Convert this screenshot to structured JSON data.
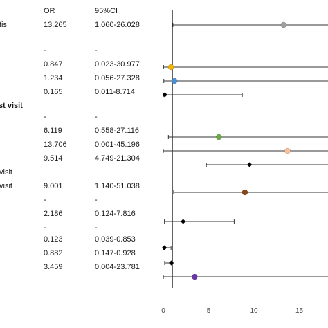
{
  "header": {
    "or_label": "OR",
    "ci_label": "95%CI"
  },
  "rows": [
    {
      "label": "tis",
      "or": "13.265",
      "ci": "1.060-26.028"
    },
    {
      "label": "",
      "or": "-",
      "ci": "-"
    },
    {
      "label": "",
      "or": "0.847",
      "ci": "0.023-30.977"
    },
    {
      "label": "",
      "or": "1.234",
      "ci": "0.056-27.328"
    },
    {
      "label": "",
      "or": "0.165",
      "ci": "0.011-8.714"
    },
    {
      "label": "st visit",
      "or": "",
      "ci": ""
    },
    {
      "label": "",
      "or": "-",
      "ci": "-"
    },
    {
      "label": "",
      "or": "6.119",
      "ci": "0.558-27.116"
    },
    {
      "label": "",
      "or": "13.706",
      "ci": "0.001-45.196"
    },
    {
      "label": "",
      "or": "9.514",
      "ci": "4.749-21.304"
    },
    {
      "label": "visit",
      "or": "",
      "ci": ""
    },
    {
      "label": "visit",
      "or": "9.001",
      "ci": "1.140-51.038"
    },
    {
      "label": "",
      "or": "-",
      "ci": "-"
    },
    {
      "label": "",
      "or": "2.186",
      "ci": "0.124-7.816"
    },
    {
      "label": "",
      "or": "-",
      "ci": "-"
    },
    {
      "label": "",
      "or": "0.123",
      "ci": "0.039-0.853"
    },
    {
      "label": "",
      "or": "0.882",
      "ci": "0.147-0.928"
    },
    {
      "label": "",
      "or": "3.459",
      "ci": "0.004-23.781"
    }
  ],
  "chart_data": {
    "type": "forest",
    "reference_line": 1,
    "xlim": [
      0,
      17
    ],
    "x_ticks": [
      0,
      5,
      10,
      15
    ],
    "points": [
      {
        "or": 13.265,
        "lo": 1.06,
        "hi": 26.028,
        "marker": "circle",
        "color": "#9e9e9e"
      },
      {
        "or": 0.847,
        "lo": 0.023,
        "hi": 30.977,
        "marker": "circle",
        "color": "#f2b705"
      },
      {
        "or": 1.234,
        "lo": 0.056,
        "hi": 27.328,
        "marker": "circle",
        "color": "#4a8fd8"
      },
      {
        "or": 0.165,
        "lo": 0.011,
        "hi": 8.714,
        "marker": "diamond",
        "color": "#000000"
      },
      {
        "or": 6.119,
        "lo": 0.558,
        "hi": 27.116,
        "marker": "circle",
        "color": "#6aac3f"
      },
      {
        "or": 13.706,
        "lo": 0.001,
        "hi": 45.196,
        "marker": "circle",
        "color": "#f7c29a"
      },
      {
        "or": 9.514,
        "lo": 4.749,
        "hi": 21.304,
        "marker": "diamond",
        "color": "#000000"
      },
      {
        "or": 9.001,
        "lo": 1.14,
        "hi": 51.038,
        "marker": "circle",
        "color": "#8b4513"
      },
      {
        "or": 2.186,
        "lo": 0.124,
        "hi": 7.816,
        "marker": "diamond",
        "color": "#000000"
      },
      {
        "or": 0.123,
        "lo": 0.039,
        "hi": 0.853,
        "marker": "diamond",
        "color": "#000000"
      },
      {
        "or": 0.882,
        "lo": 0.147,
        "hi": 0.928,
        "marker": "diamond",
        "color": "#000000"
      },
      {
        "or": 3.459,
        "lo": 0.004,
        "hi": 23.781,
        "marker": "circle",
        "color": "#6a35a8"
      }
    ]
  }
}
